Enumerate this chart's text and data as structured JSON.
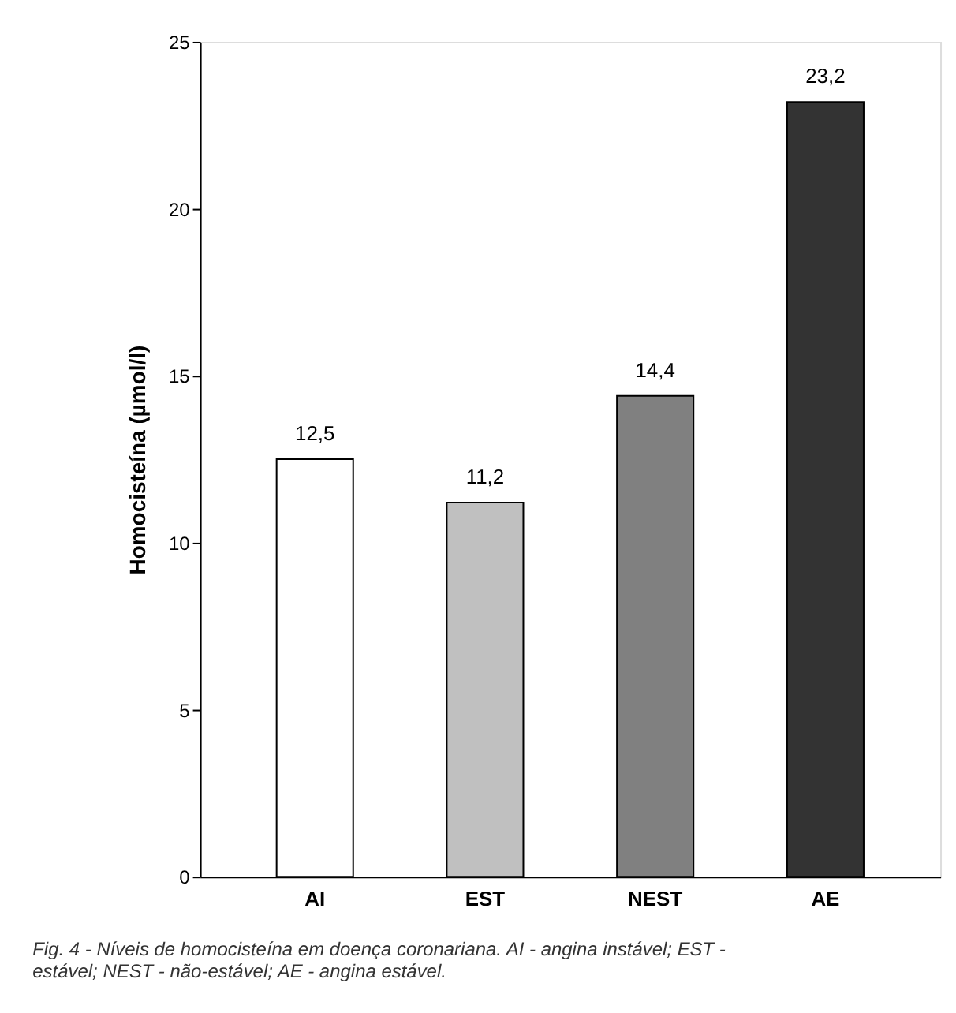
{
  "chart_data": {
    "type": "bar",
    "ylabel": "Homocisteína (µmol/l)",
    "categories": [
      "AI",
      "EST",
      "NEST",
      "AE"
    ],
    "values": [
      12.5,
      11.2,
      14.4,
      23.2
    ],
    "colors": [
      "#ffffff",
      "#c0c0c0",
      "#808080",
      "#333333"
    ],
    "value_labels": [
      "12,5",
      "11,2",
      "14,4",
      "23,2"
    ],
    "ylim": [
      0,
      25
    ],
    "yticks": [
      0,
      5,
      10,
      15,
      20,
      25
    ],
    "grid": false,
    "annotations": [
      "Fig. 4 - Níveis de homocisteína em doença coronariana. AI - angina instável; EST - estável; NEST - não-estável; AE - angina estável."
    ]
  }
}
